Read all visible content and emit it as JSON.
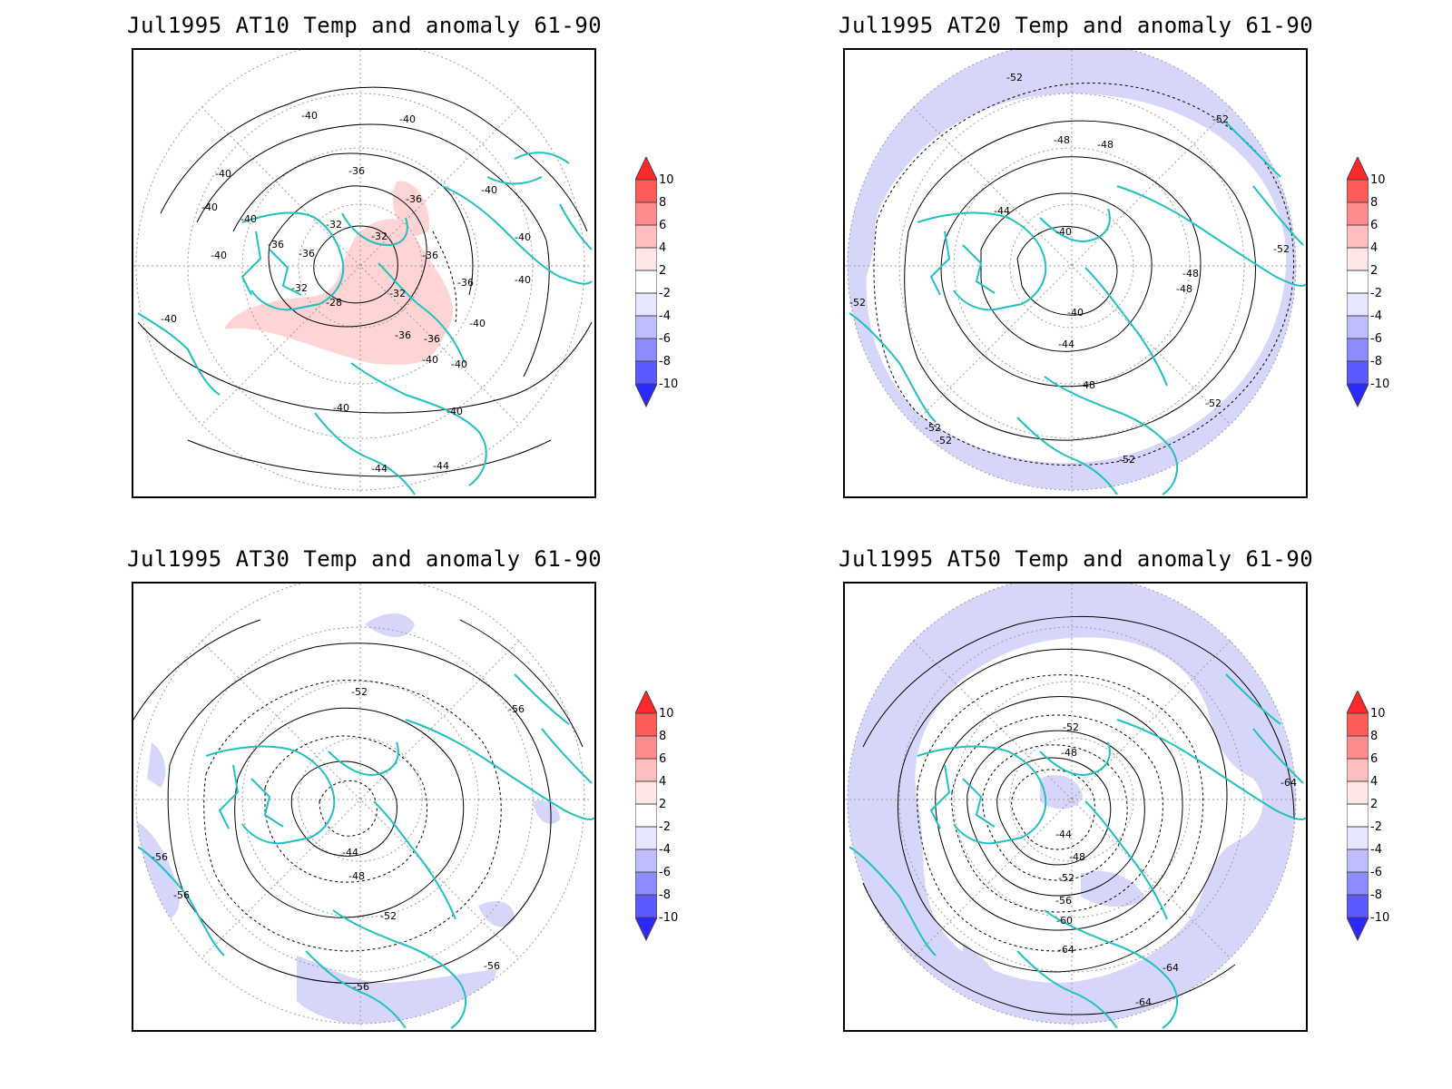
{
  "panels": [
    {
      "title": "Jul1995 AT10 Temp and anomaly 61-90",
      "level": "AT10",
      "isoline_labels": [
        "-40",
        "-40",
        "-40",
        "-36",
        "-36",
        "-40",
        "-40",
        "-40",
        "-40",
        "-36",
        "-32",
        "-32",
        "-36",
        "-36",
        "-36",
        "-40",
        "-32",
        "-28",
        "-32",
        "-36",
        "-36",
        "-40",
        "-40",
        "-40",
        "-40",
        "-40",
        "-44",
        "-44",
        "-40",
        "-40"
      ],
      "anomaly_shading": "positive (+2 to +4) band over North Atlantic, Europe and Arctic"
    },
    {
      "title": "Jul1995 AT20 Temp and anomaly 61-90",
      "level": "AT20",
      "isoline_labels": [
        "-52",
        "-52",
        "-48",
        "-48",
        "-44",
        "-40",
        "-40",
        "-44",
        "-48",
        "-48",
        "-48",
        "-52",
        "-52",
        "-52",
        "-52",
        "-52",
        "-52"
      ],
      "anomaly_shading": "negative (-2 to -4) ring along outer latitudes"
    },
    {
      "title": "Jul1995 AT30 Temp and anomaly 61-90",
      "level": "AT30",
      "isoline_labels": [
        "-52",
        "-56",
        "-44",
        "-48",
        "-52",
        "-56",
        "-56",
        "-56"
      ],
      "anomaly_shading": "scattered negative (-2 to -4) patches"
    },
    {
      "title": "Jul1995 AT50 Temp and anomaly 61-90",
      "level": "AT50",
      "isoline_labels": [
        "-52",
        "-48",
        "-44",
        "-48",
        "-52",
        "-56",
        "-60",
        "-64",
        "-64",
        "-64",
        "-64"
      ],
      "anomaly_shading": "widespread negative (-2 to -4) area"
    }
  ],
  "colorbar": {
    "labels": [
      "10",
      "8",
      "6",
      "4",
      "2",
      "-2",
      "-4",
      "-6",
      "-8",
      "-10"
    ],
    "colors": [
      "#ff2828",
      "#ff5a5a",
      "#ff8c8c",
      "#ffbebe",
      "#ffe6e6",
      "#ffffff",
      "#e6e6ff",
      "#bebeff",
      "#8c8cff",
      "#5a5aff",
      "#2828ff"
    ]
  },
  "style": {
    "coastline_color": "#20c0c0",
    "contour_color": "#000000",
    "positive_anomaly_fill": "#ffd4d4",
    "negative_anomaly_fill": "#d6d6fb"
  }
}
